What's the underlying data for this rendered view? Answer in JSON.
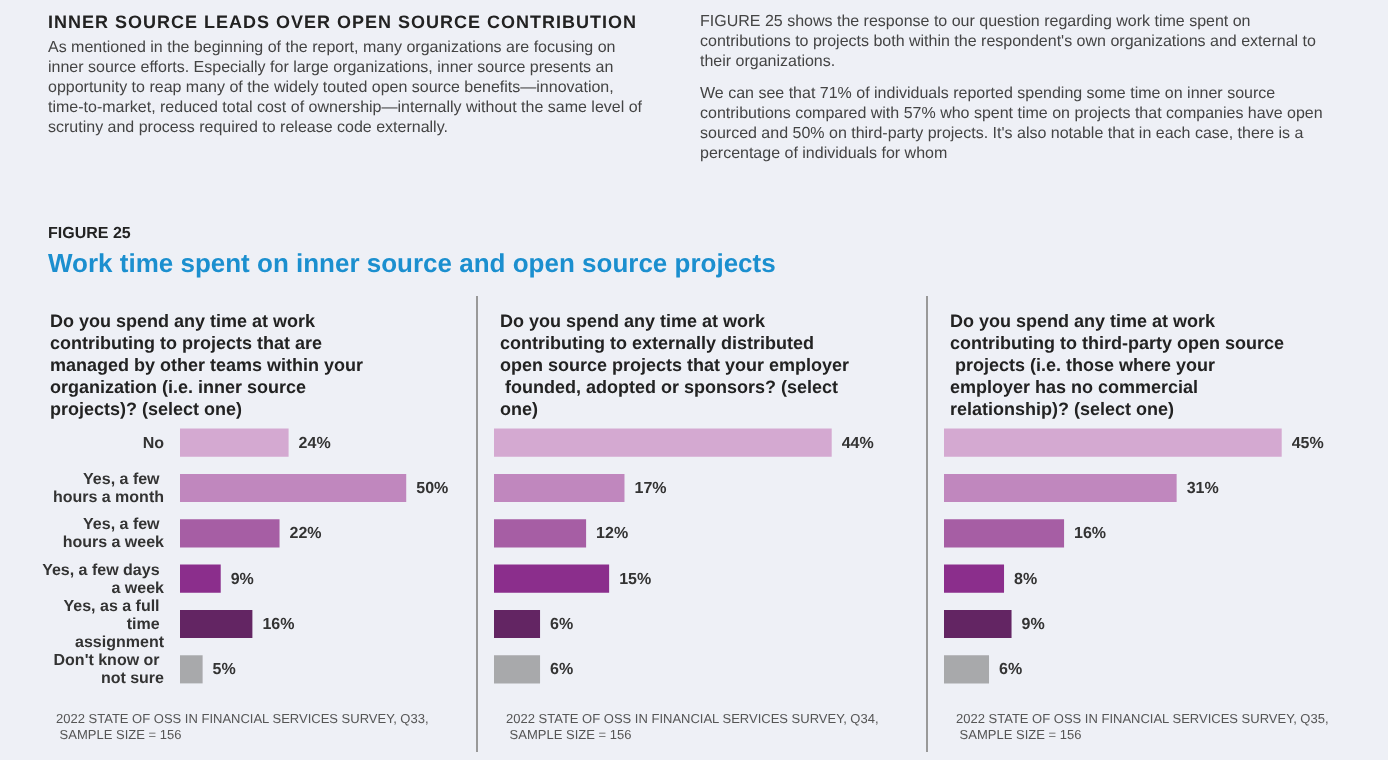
{
  "chart_data": [
    {
      "type": "bar",
      "orientation": "horizontal",
      "title": "Do you spend any time at work contributing to projects that are managed by other teams within your organization (i.e. inner source projects)? (select one)",
      "categories": [
        "No",
        "Yes, a few hours a month",
        "Yes, a few hours a week",
        "Yes, a few days a week",
        "Yes, as a full time assignment",
        "Don't know or not sure"
      ],
      "values": [
        24,
        50,
        22,
        9,
        16,
        5
      ],
      "value_labels": [
        "24%",
        "50%",
        "22%",
        "9%",
        "16%",
        "5%"
      ],
      "colors": [
        "#d4a9d1",
        "#c087be",
        "#a65ea4",
        "#8b2e8c",
        "#632563",
        "#a8a9ab"
      ],
      "annotations": [
        "INNER SOURCE LEADS OVER OPEN SOURCE CONTRIBUTION",
        "As mentioned in the beginning of the report, many organizations are focusing on inner source efforts. Especially for large organizations, inner source presents an opportunity to reap many of the widely touted open source benefits—innovation, time-to-market, reduced total cost of ownership—internally without the same level of scrutiny and process required to release code externally.",
        "FIGURE 25 shows the response to our question regarding work time spent on contributions to projects both within the respondent's own organizations and external to their organizations.",
        "We can see that 71% of individuals reported spending some time on inner source contributions compared with 57% who spent time on projects that companies have open sourced and 50% on third-party projects. It's also notable that in each case, there is a percentage of individuals for whom",
        "FIGURE 25",
        "Work time spent on inner source and open source projects",
        "2022 STATE OF OSS IN FINANCIAL SERVICES SURVEY, Q33, SAMPLE SIZE = 156"
      ]
    },
    {
      "type": "bar",
      "orientation": "horizontal",
      "tick_labels": false,
      "title": "Do you spend any time at work contributing to externally distributed open source projects that your employer founded, adopted or sponsors? (select one)",
      "categories": [
        "No",
        "Yes, a few hours a month",
        "Yes, a few hours a week",
        "Yes, a few days a week",
        "Yes, as a full time assignment",
        "Don't know or not sure"
      ],
      "values": [
        44,
        17,
        12,
        15,
        6,
        6
      ],
      "value_labels": [
        "44%",
        "17%",
        "12%",
        "15%",
        "6%",
        "6%"
      ],
      "colors": [
        "#d4a9d1",
        "#c087be",
        "#a65ea4",
        "#8b2e8c",
        "#632563",
        "#a8a9ab"
      ],
      "annotations": [
        "2022 STATE OF OSS IN FINANCIAL SERVICES SURVEY, Q34, SAMPLE SIZE = 156"
      ]
    },
    {
      "type": "bar",
      "orientation": "horizontal",
      "tick_labels": false,
      "title": "Do you spend any time at work contributing to third-party open source projects (i.e. those where your employer has no commercial relationship)? (select one)",
      "categories": [
        "No",
        "Yes, a few hours a month",
        "Yes, a few hours a week",
        "Yes, a few days a week",
        "Yes, as a full time assignment",
        "Don't know or not sure"
      ],
      "values": [
        45,
        31,
        16,
        8,
        9,
        6
      ],
      "value_labels": [
        "45%",
        "31%",
        "16%",
        "8%",
        "9%",
        "6%"
      ],
      "colors": [
        "#d4a9d1",
        "#c087be",
        "#a65ea4",
        "#8b2e8c",
        "#632563",
        "#a8a9ab"
      ],
      "annotations": [
        "2022 STATE OF OSS IN FINANCIAL SERVICES SURVEY, Q35, SAMPLE SIZE = 156"
      ]
    }
  ]
}
